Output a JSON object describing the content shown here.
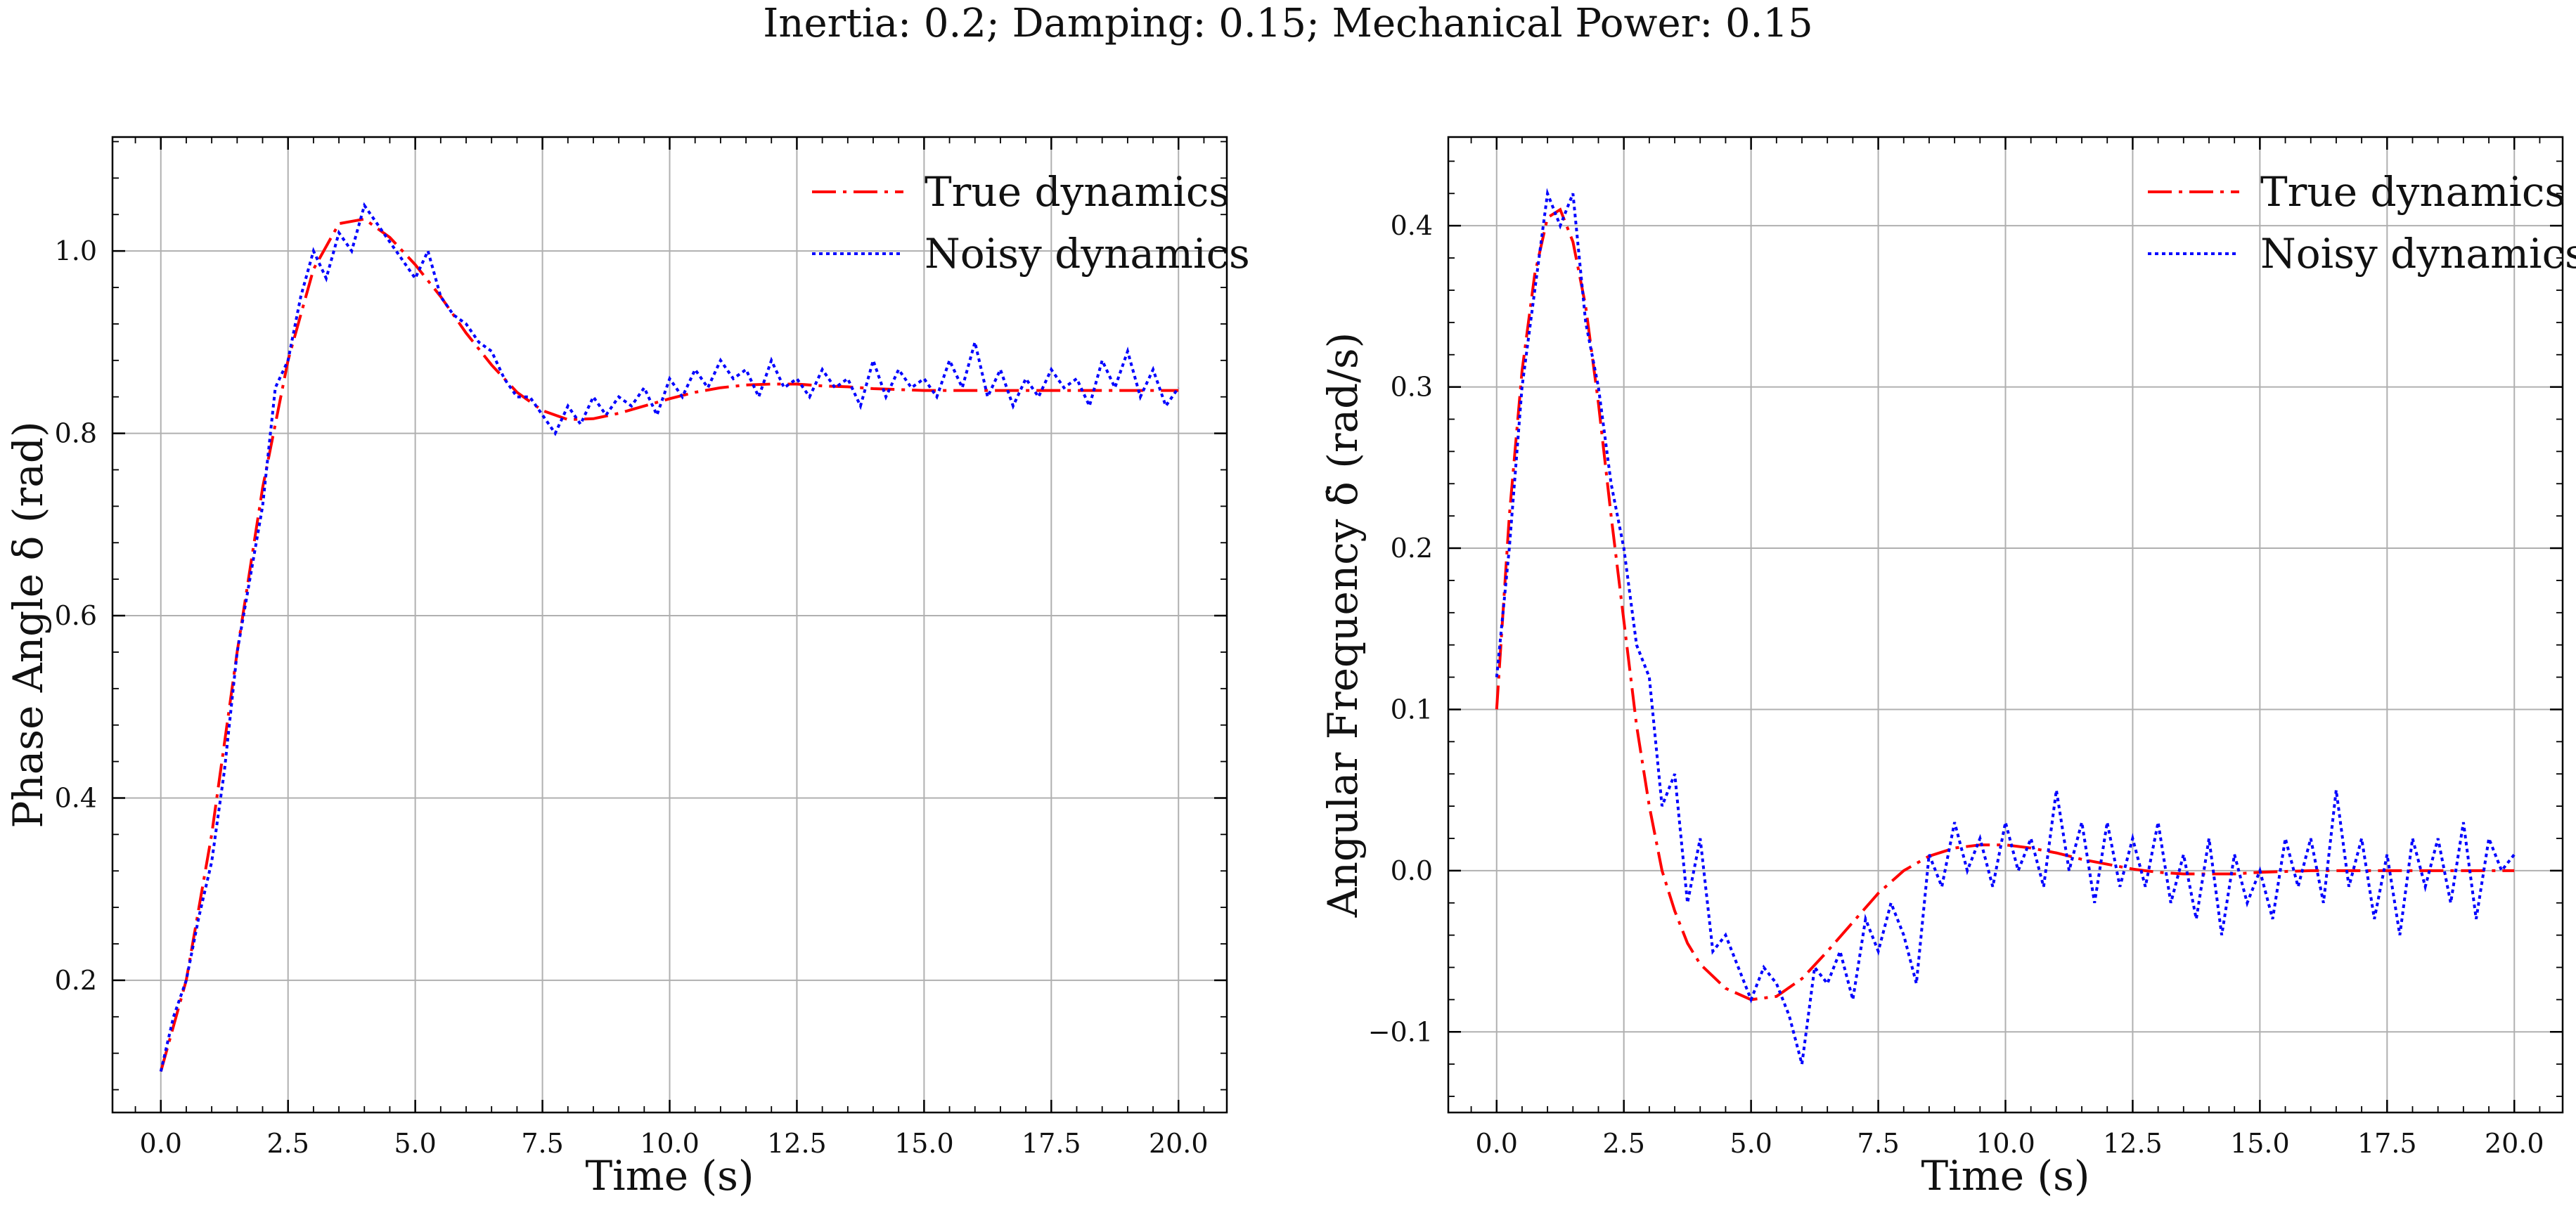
{
  "figure": {
    "suptitle": "Inertia: 0.2; Damping: 0.15; Mechanical Power: 0.15"
  },
  "chart_data": [
    {
      "type": "line",
      "title": "",
      "xlabel": "Time (s)",
      "ylabel": "Phase Angle δ (rad)",
      "xlim": [
        -0.95,
        20.95
      ],
      "ylim": [
        0.055,
        1.125
      ],
      "xticks": [
        0.0,
        2.5,
        5.0,
        7.5,
        10.0,
        12.5,
        15.0,
        17.5,
        20.0
      ],
      "xtick_labels": [
        "0.0",
        "2.5",
        "5.0",
        "7.5",
        "10.0",
        "12.5",
        "15.0",
        "17.5",
        "20.0"
      ],
      "yticks": [
        0.2,
        0.4,
        0.6,
        0.8,
        1.0
      ],
      "ytick_labels": [
        "0.2",
        "0.4",
        "0.6",
        "0.8",
        "1.0"
      ],
      "grid": true,
      "legend_position": "top-right",
      "series": [
        {
          "name": "True dynamics",
          "color": "#ff0000",
          "dash": "dash-dot",
          "x": [
            0.0,
            0.5,
            1.0,
            1.5,
            2.0,
            2.5,
            3.0,
            3.5,
            4.0,
            4.5,
            5.0,
            5.5,
            6.0,
            6.5,
            7.0,
            7.5,
            8.0,
            8.5,
            9.0,
            9.5,
            10.0,
            10.5,
            11.0,
            11.5,
            12.0,
            12.5,
            13.0,
            13.5,
            14.0,
            14.5,
            15.0,
            15.5,
            16.0,
            16.5,
            17.0,
            17.5,
            18.0,
            18.5,
            19.0,
            19.5,
            20.0
          ],
          "y": [
            0.1,
            0.2,
            0.36,
            0.56,
            0.74,
            0.88,
            0.98,
            1.03,
            1.035,
            1.015,
            0.985,
            0.95,
            0.91,
            0.875,
            0.845,
            0.825,
            0.815,
            0.816,
            0.822,
            0.83,
            0.838,
            0.845,
            0.85,
            0.853,
            0.854,
            0.854,
            0.852,
            0.851,
            0.849,
            0.848,
            0.847,
            0.847,
            0.847,
            0.847,
            0.847,
            0.847,
            0.847,
            0.847,
            0.847,
            0.847,
            0.847
          ]
        },
        {
          "name": "Noisy dynamics",
          "color": "#0000ff",
          "dash": "dotted",
          "x": [
            0.0,
            0.25,
            0.5,
            0.75,
            1.0,
            1.25,
            1.5,
            1.75,
            2.0,
            2.25,
            2.5,
            2.75,
            3.0,
            3.25,
            3.5,
            3.75,
            4.0,
            4.25,
            4.5,
            4.75,
            5.0,
            5.25,
            5.5,
            5.75,
            6.0,
            6.25,
            6.5,
            6.75,
            7.0,
            7.25,
            7.5,
            7.75,
            8.0,
            8.25,
            8.5,
            8.75,
            9.0,
            9.25,
            9.5,
            9.75,
            10.0,
            10.25,
            10.5,
            10.75,
            11.0,
            11.25,
            11.5,
            11.75,
            12.0,
            12.25,
            12.5,
            12.75,
            13.0,
            13.25,
            13.5,
            13.75,
            14.0,
            14.25,
            14.5,
            14.75,
            15.0,
            15.25,
            15.5,
            15.75,
            16.0,
            16.25,
            16.5,
            16.75,
            17.0,
            17.25,
            17.5,
            17.75,
            18.0,
            18.25,
            18.5,
            18.75,
            19.0,
            19.25,
            19.5,
            19.75,
            20.0
          ],
          "y": [
            0.1,
            0.16,
            0.2,
            0.27,
            0.33,
            0.43,
            0.56,
            0.64,
            0.72,
            0.85,
            0.88,
            0.95,
            1.0,
            0.97,
            1.02,
            1.0,
            1.05,
            1.03,
            1.01,
            0.99,
            0.97,
            1.0,
            0.95,
            0.93,
            0.92,
            0.9,
            0.89,
            0.86,
            0.84,
            0.84,
            0.82,
            0.8,
            0.83,
            0.81,
            0.84,
            0.82,
            0.84,
            0.83,
            0.85,
            0.82,
            0.86,
            0.84,
            0.87,
            0.85,
            0.88,
            0.86,
            0.87,
            0.84,
            0.88,
            0.85,
            0.86,
            0.84,
            0.87,
            0.85,
            0.86,
            0.83,
            0.88,
            0.84,
            0.87,
            0.85,
            0.86,
            0.84,
            0.88,
            0.85,
            0.9,
            0.84,
            0.87,
            0.83,
            0.86,
            0.84,
            0.87,
            0.85,
            0.86,
            0.83,
            0.88,
            0.85,
            0.89,
            0.84,
            0.87,
            0.83,
            0.85
          ]
        }
      ]
    },
    {
      "type": "line",
      "title": "",
      "xlabel": "Time (s)",
      "ylabel": "Angular Frequency δ̇ (rad/s)",
      "xlim": [
        -0.95,
        20.95
      ],
      "ylim": [
        -0.15,
        0.455
      ],
      "xticks": [
        0.0,
        2.5,
        5.0,
        7.5,
        10.0,
        12.5,
        15.0,
        17.5,
        20.0
      ],
      "xtick_labels": [
        "0.0",
        "2.5",
        "5.0",
        "7.5",
        "10.0",
        "12.5",
        "15.0",
        "17.5",
        "20.0"
      ],
      "yticks": [
        -0.1,
        0.0,
        0.1,
        0.2,
        0.3,
        0.4
      ],
      "ytick_labels": [
        "−0.1",
        "0.0",
        "0.1",
        "0.2",
        "0.3",
        "0.4"
      ],
      "grid": true,
      "legend_position": "top-right",
      "series": [
        {
          "name": "True dynamics",
          "color": "#ff0000",
          "dash": "dash-dot",
          "x": [
            0.0,
            0.25,
            0.5,
            0.75,
            1.0,
            1.25,
            1.5,
            1.75,
            2.0,
            2.25,
            2.5,
            2.75,
            3.0,
            3.25,
            3.5,
            3.75,
            4.0,
            4.5,
            5.0,
            5.5,
            6.0,
            6.5,
            7.0,
            7.5,
            8.0,
            8.5,
            9.0,
            9.5,
            10.0,
            10.5,
            11.0,
            11.5,
            12.0,
            12.5,
            13.0,
            13.5,
            14.0,
            14.5,
            15.0,
            16.0,
            17.0,
            18.0,
            19.0,
            20.0
          ],
          "y": [
            0.1,
            0.22,
            0.31,
            0.37,
            0.405,
            0.41,
            0.39,
            0.35,
            0.29,
            0.22,
            0.155,
            0.09,
            0.04,
            0.0,
            -0.025,
            -0.045,
            -0.058,
            -0.073,
            -0.08,
            -0.078,
            -0.067,
            -0.05,
            -0.032,
            -0.014,
            0.0,
            0.009,
            0.014,
            0.016,
            0.016,
            0.014,
            0.011,
            0.007,
            0.004,
            0.001,
            -0.001,
            -0.002,
            -0.002,
            -0.002,
            -0.001,
            0.0,
            0.0,
            0.0,
            0.0,
            0.0
          ]
        },
        {
          "name": "Noisy dynamics",
          "color": "#0000ff",
          "dash": "dotted",
          "x": [
            0.0,
            0.25,
            0.5,
            0.75,
            1.0,
            1.25,
            1.5,
            1.75,
            2.0,
            2.25,
            2.5,
            2.75,
            3.0,
            3.25,
            3.5,
            3.75,
            4.0,
            4.25,
            4.5,
            4.75,
            5.0,
            5.25,
            5.5,
            5.75,
            6.0,
            6.25,
            6.5,
            6.75,
            7.0,
            7.25,
            7.5,
            7.75,
            8.0,
            8.25,
            8.5,
            8.75,
            9.0,
            9.25,
            9.5,
            9.75,
            10.0,
            10.25,
            10.5,
            10.75,
            11.0,
            11.25,
            11.5,
            11.75,
            12.0,
            12.25,
            12.5,
            12.75,
            13.0,
            13.25,
            13.5,
            13.75,
            14.0,
            14.25,
            14.5,
            14.75,
            15.0,
            15.25,
            15.5,
            15.75,
            16.0,
            16.25,
            16.5,
            16.75,
            17.0,
            17.25,
            17.5,
            17.75,
            18.0,
            18.25,
            18.5,
            18.75,
            19.0,
            19.25,
            19.5,
            19.75,
            20.0
          ],
          "y": [
            0.12,
            0.2,
            0.3,
            0.36,
            0.42,
            0.4,
            0.42,
            0.34,
            0.3,
            0.24,
            0.2,
            0.14,
            0.12,
            0.04,
            0.06,
            -0.02,
            0.02,
            -0.05,
            -0.04,
            -0.06,
            -0.08,
            -0.06,
            -0.07,
            -0.09,
            -0.12,
            -0.06,
            -0.07,
            -0.05,
            -0.08,
            -0.03,
            -0.05,
            -0.02,
            -0.04,
            -0.07,
            0.01,
            -0.01,
            0.03,
            0.0,
            0.02,
            -0.01,
            0.03,
            0.0,
            0.02,
            -0.01,
            0.05,
            0.0,
            0.03,
            -0.02,
            0.03,
            -0.01,
            0.02,
            -0.01,
            0.03,
            -0.02,
            0.01,
            -0.03,
            0.02,
            -0.04,
            0.01,
            -0.02,
            0.0,
            -0.03,
            0.02,
            -0.01,
            0.02,
            -0.02,
            0.05,
            -0.01,
            0.02,
            -0.03,
            0.01,
            -0.04,
            0.02,
            -0.01,
            0.02,
            -0.02,
            0.03,
            -0.03,
            0.02,
            0.0,
            0.01
          ]
        }
      ]
    }
  ]
}
